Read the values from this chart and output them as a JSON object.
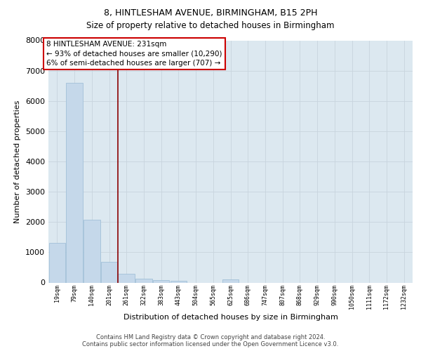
{
  "title_line1": "8, HINTLESHAM AVENUE, BIRMINGHAM, B15 2PH",
  "title_line2": "Size of property relative to detached houses in Birmingham",
  "xlabel": "Distribution of detached houses by size in Birmingham",
  "ylabel": "Number of detached properties",
  "footer_line1": "Contains HM Land Registry data © Crown copyright and database right 2024.",
  "footer_line2": "Contains public sector information licensed under the Open Government Licence v3.0.",
  "categories": [
    "19sqm",
    "79sqm",
    "140sqm",
    "201sqm",
    "261sqm",
    "322sqm",
    "383sqm",
    "443sqm",
    "504sqm",
    "565sqm",
    "625sqm",
    "686sqm",
    "747sqm",
    "807sqm",
    "868sqm",
    "929sqm",
    "990sqm",
    "1050sqm",
    "1111sqm",
    "1172sqm",
    "1232sqm"
  ],
  "values": [
    1300,
    6600,
    2080,
    680,
    290,
    135,
    80,
    55,
    0,
    0,
    100,
    0,
    0,
    0,
    0,
    0,
    0,
    0,
    0,
    0,
    0
  ],
  "bar_color": "#c5d8ea",
  "bar_edge_color": "#99bbd4",
  "vline_color": "#8b0000",
  "vline_pos": 3.5,
  "annotation_text_line1": "8 HINTLESHAM AVENUE: 231sqm",
  "annotation_text_line2": "← 93% of detached houses are smaller (10,290)",
  "annotation_text_line3": "6% of semi-detached houses are larger (707) →",
  "annotation_box_edgecolor": "#cc0000",
  "ylim": [
    0,
    8000
  ],
  "yticks": [
    0,
    1000,
    2000,
    3000,
    4000,
    5000,
    6000,
    7000,
    8000
  ],
  "grid_color": "#c8d4de",
  "bg_color": "#dce8f0",
  "title_fontsize": 9,
  "subtitle_fontsize": 8.5,
  "ylabel_fontsize": 8,
  "xlabel_fontsize": 8,
  "tick_fontsize": 8,
  "xtick_fontsize": 6,
  "ann_fontsize": 7.5,
  "footer_fontsize": 6
}
